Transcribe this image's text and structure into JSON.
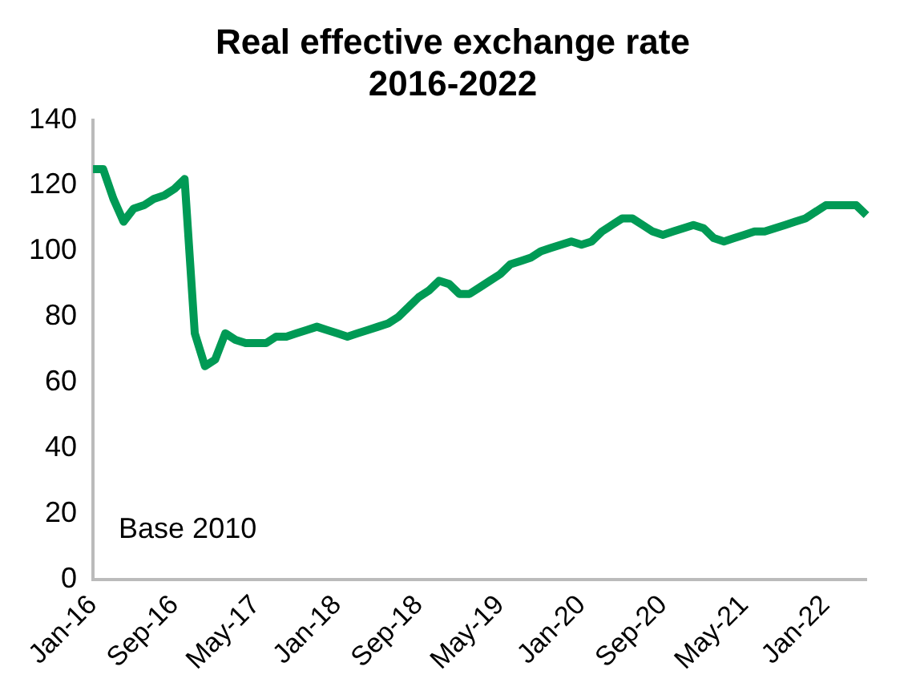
{
  "chart_data": {
    "type": "line",
    "title": "Real effective exchange rate\n2016-2022",
    "categories": [
      "Jan-16",
      null,
      null,
      null,
      null,
      null,
      null,
      null,
      "Sep-16",
      null,
      null,
      null,
      null,
      null,
      null,
      null,
      "May-17",
      null,
      null,
      null,
      null,
      null,
      null,
      null,
      "Jan-18",
      null,
      null,
      null,
      null,
      null,
      null,
      null,
      "Sep-18",
      null,
      null,
      null,
      null,
      null,
      null,
      null,
      "May-19",
      null,
      null,
      null,
      null,
      null,
      null,
      null,
      "Jan-20",
      null,
      null,
      null,
      null,
      null,
      null,
      null,
      "Sep-20",
      null,
      null,
      null,
      null,
      null,
      null,
      null,
      "May-21",
      null,
      null,
      null,
      null,
      null,
      null,
      null,
      "Jan-22",
      null,
      null,
      null,
      null
    ],
    "series": [
      {
        "color": "#009a55",
        "values": [
          125,
          125,
          116,
          109,
          113,
          114,
          116,
          117,
          119,
          122,
          75,
          65,
          67,
          75,
          73,
          72,
          72,
          72,
          74,
          74,
          75,
          76,
          77,
          76,
          75,
          74,
          75,
          76,
          77,
          78,
          80,
          83,
          86,
          88,
          91,
          90,
          87,
          87,
          89,
          91,
          93,
          96,
          97,
          98,
          100,
          101,
          102,
          103,
          102,
          103,
          106,
          108,
          110,
          110,
          108,
          106,
          105,
          106,
          107,
          108,
          107,
          104,
          103,
          104,
          105,
          106,
          106,
          107,
          108,
          109,
          110,
          112,
          114,
          114,
          114,
          114,
          111
        ]
      }
    ],
    "ylim": [
      0,
      140
    ],
    "yticks": [
      0,
      20,
      40,
      60,
      80,
      100,
      120,
      140
    ],
    "grid": false,
    "legend": false,
    "marker": "none",
    "line_style": "solid",
    "annotations": [
      "Base 2010"
    ]
  }
}
